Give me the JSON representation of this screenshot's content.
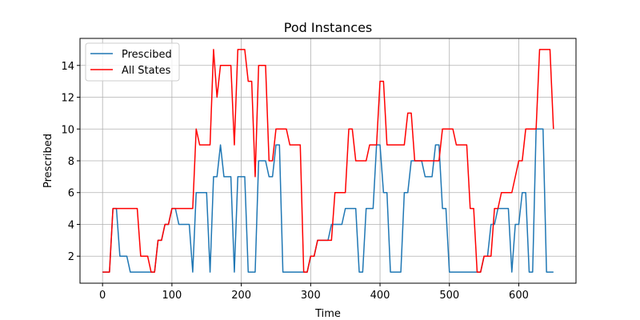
{
  "chart_data": {
    "type": "line",
    "title": "Pod Instances",
    "xlabel": "Time",
    "ylabel": "Prescribed",
    "xlim": [
      -32.5,
      682.5
    ],
    "ylim": [
      0.3,
      15.7
    ],
    "xticks": [
      0,
      100,
      200,
      300,
      400,
      500,
      600
    ],
    "yticks": [
      2,
      4,
      6,
      8,
      10,
      12,
      14
    ],
    "grid": true,
    "legend_position": "upper-left",
    "series": [
      {
        "name": "Prescibed",
        "color": "#1f77b4",
        "x": [
          0,
          5,
          10,
          15,
          20,
          25,
          30,
          35,
          40,
          45,
          50,
          55,
          60,
          65,
          70,
          75,
          80,
          85,
          90,
          95,
          100,
          105,
          110,
          115,
          120,
          125,
          130,
          135,
          140,
          145,
          150,
          155,
          160,
          165,
          170,
          175,
          180,
          185,
          190,
          195,
          200,
          205,
          210,
          215,
          220,
          225,
          230,
          235,
          240,
          245,
          250,
          255,
          260,
          265,
          270,
          275,
          280,
          285,
          290,
          295,
          300,
          305,
          310,
          315,
          320,
          325,
          330,
          335,
          340,
          345,
          350,
          355,
          360,
          365,
          370,
          375,
          380,
          385,
          390,
          395,
          400,
          405,
          410,
          415,
          420,
          425,
          430,
          435,
          440,
          445,
          450,
          455,
          460,
          465,
          470,
          475,
          480,
          485,
          490,
          495,
          500,
          505,
          510,
          515,
          520,
          525,
          530,
          535,
          540,
          545,
          550,
          555,
          560,
          565,
          570,
          575,
          580,
          585,
          590,
          595,
          600,
          605,
          610,
          615,
          620,
          625,
          630,
          635,
          640,
          645,
          650
        ],
        "values": [
          1,
          1,
          1,
          5,
          5,
          2,
          2,
          2,
          1,
          1,
          1,
          1,
          1,
          1,
          1,
          1,
          3,
          3,
          4,
          4,
          5,
          5,
          4,
          4,
          4,
          4,
          1,
          6,
          6,
          6,
          6,
          1,
          7,
          7,
          9,
          7,
          7,
          7,
          1,
          7,
          7,
          7,
          1,
          1,
          1,
          8,
          8,
          8,
          7,
          7,
          9,
          9,
          1,
          1,
          1,
          1,
          1,
          1,
          1,
          1,
          2,
          2,
          3,
          3,
          3,
          3,
          4,
          4,
          4,
          4,
          5,
          5,
          5,
          5,
          1,
          1,
          5,
          5,
          5,
          9,
          9,
          6,
          6,
          1,
          1,
          1,
          1,
          6,
          6,
          8,
          8,
          8,
          8,
          7,
          7,
          7,
          9,
          9,
          5,
          5,
          1,
          1,
          1,
          1,
          1,
          1,
          1,
          1,
          1,
          1,
          2,
          2,
          4,
          4,
          5,
          5,
          5,
          5,
          1,
          4,
          4,
          6,
          6,
          1,
          1,
          10,
          10,
          10,
          1,
          1,
          1
        ]
      },
      {
        "name": "All States",
        "color": "#ff0000",
        "x": [
          0,
          5,
          10,
          15,
          20,
          25,
          30,
          35,
          40,
          45,
          50,
          55,
          60,
          65,
          70,
          75,
          80,
          85,
          90,
          95,
          100,
          105,
          110,
          115,
          120,
          125,
          130,
          135,
          140,
          145,
          150,
          155,
          160,
          165,
          170,
          175,
          180,
          185,
          190,
          195,
          200,
          205,
          210,
          215,
          220,
          225,
          230,
          235,
          240,
          245,
          250,
          255,
          260,
          265,
          270,
          275,
          280,
          285,
          290,
          295,
          300,
          305,
          310,
          315,
          320,
          325,
          330,
          335,
          340,
          345,
          350,
          355,
          360,
          365,
          370,
          375,
          380,
          385,
          390,
          395,
          400,
          405,
          410,
          415,
          420,
          425,
          430,
          435,
          440,
          445,
          450,
          455,
          460,
          465,
          470,
          475,
          480,
          485,
          490,
          495,
          500,
          505,
          510,
          515,
          520,
          525,
          530,
          535,
          540,
          545,
          550,
          555,
          560,
          565,
          570,
          575,
          580,
          585,
          590,
          595,
          600,
          605,
          610,
          615,
          620,
          625,
          630,
          635,
          640,
          645,
          650
        ],
        "values": [
          1,
          1,
          1,
          5,
          5,
          5,
          5,
          5,
          5,
          5,
          5,
          2,
          2,
          2,
          1,
          1,
          3,
          3,
          4,
          4,
          5,
          5,
          5,
          5,
          5,
          5,
          5,
          10,
          9,
          9,
          9,
          9,
          15,
          12,
          14,
          14,
          14,
          14,
          9,
          15,
          15,
          15,
          13,
          13,
          7,
          14,
          14,
          14,
          8,
          8,
          10,
          10,
          10,
          10,
          9,
          9,
          9,
          9,
          1,
          1,
          2,
          2,
          3,
          3,
          3,
          3,
          3,
          6,
          6,
          6,
          6,
          10,
          10,
          8,
          8,
          8,
          8,
          9,
          9,
          9,
          13,
          13,
          9,
          9,
          9,
          9,
          9,
          9,
          11,
          11,
          8,
          8,
          8,
          8,
          8,
          8,
          8,
          8,
          10,
          10,
          10,
          10,
          9,
          9,
          9,
          9,
          5,
          5,
          1,
          1,
          2,
          2,
          2,
          5,
          5,
          6,
          6,
          6,
          6,
          7,
          8,
          8,
          10,
          10,
          10,
          10,
          15,
          15,
          15,
          15,
          10
        ]
      }
    ]
  }
}
